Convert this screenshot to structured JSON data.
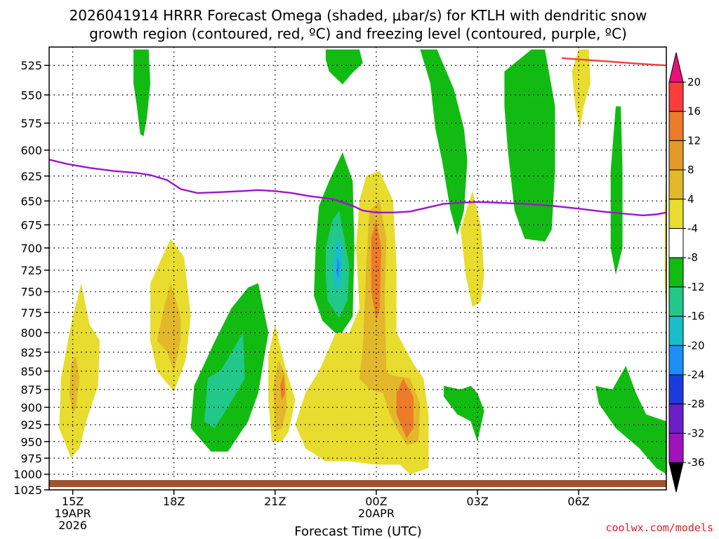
{
  "chart_data": {
    "type": "heatmap",
    "title_line1": "2026041914 HRRR Forecast Omega (shaded, μbar/s) for KTLH with dendritic snow",
    "title_line2": "growth region (contoured, red, ºC) and freezing level (contoured, purple, ºC)",
    "xlabel": "Forecast Time (UTC)",
    "credit": "coolwx.com/models",
    "x_range_hours": [
      14.3,
      32.6
    ],
    "y_range_hpa": [
      1025,
      510
    ],
    "y_ticks": [
      525,
      550,
      575,
      600,
      625,
      650,
      675,
      700,
      725,
      750,
      775,
      800,
      825,
      850,
      875,
      900,
      925,
      950,
      975,
      1000,
      1025
    ],
    "x_ticks": [
      {
        "hour": 15,
        "lines": [
          "15Z",
          "19APR",
          "2026"
        ]
      },
      {
        "hour": 18,
        "lines": [
          "18Z"
        ]
      },
      {
        "hour": 21,
        "lines": [
          "21Z"
        ]
      },
      {
        "hour": 24,
        "lines": [
          "00Z",
          "20APR"
        ]
      },
      {
        "hour": 27,
        "lines": [
          "03Z"
        ]
      },
      {
        "hour": 30,
        "lines": [
          "06Z"
        ]
      }
    ],
    "colorbar": {
      "labels": [
        "20",
        "16",
        "12",
        "8",
        "4",
        "-4",
        "-8",
        "-12",
        "-16",
        "-20",
        "-24",
        "-28",
        "-32",
        "-36"
      ],
      "colors": [
        "#ff3b3b",
        "#ec7b2a",
        "#e29a2a",
        "#e2b82a",
        "#e8dc2e",
        "#ffffff",
        "#12bb12",
        "#22c78a",
        "#18bec8",
        "#1c8ef5",
        "#1c3bdf",
        "#6a1fc9",
        "#a012bd",
        "#a8a8a8"
      ],
      "top_color": "#e8127a",
      "bottom_color": "#000000"
    },
    "freezing_level": {
      "hours": [
        14.3,
        14.8,
        15.5,
        16.2,
        16.9,
        17.3,
        17.8,
        18.2,
        18.7,
        19.4,
        20.0,
        20.5,
        21.0,
        21.5,
        22.0,
        22.7,
        23.3,
        23.6,
        24.0,
        24.5,
        25.0,
        25.5,
        26.0,
        26.5,
        27.0,
        27.7,
        28.4,
        29.2,
        30.0,
        30.7,
        31.3,
        31.9,
        32.3,
        32.6
      ],
      "hpa": [
        609,
        613,
        617,
        620,
        622,
        624,
        629,
        638,
        642,
        641,
        640,
        639,
        640,
        642,
        645,
        648,
        655,
        660,
        662,
        662,
        661,
        657,
        653,
        652,
        651,
        652,
        653,
        655,
        658,
        661,
        663,
        665,
        664,
        662
      ]
    },
    "dgz_top": {
      "hours": [
        29.5,
        30.0,
        30.5,
        31.0,
        31.5,
        32.0,
        32.6
      ],
      "hpa": [
        519,
        520,
        521,
        522,
        523,
        524,
        525
      ]
    },
    "omega_regions": [
      {
        "value": -8,
        "level": "-4 to -8",
        "points": [
          [
            16.8,
            512
          ],
          [
            17.25,
            512
          ],
          [
            17.3,
            540
          ],
          [
            17.2,
            570
          ],
          [
            17.1,
            587
          ],
          [
            17.0,
            585
          ],
          [
            16.9,
            560
          ],
          [
            16.8,
            540
          ]
        ]
      },
      {
        "value": -8,
        "level": "-4 to -8",
        "points": [
          [
            22.5,
            512
          ],
          [
            23.5,
            512
          ],
          [
            23.6,
            523
          ],
          [
            23.3,
            531
          ],
          [
            23.0,
            541
          ],
          [
            22.6,
            530
          ],
          [
            22.5,
            520
          ]
        ]
      },
      {
        "value": -8,
        "level": "-4 to -8",
        "points": [
          [
            25.3,
            512
          ],
          [
            25.8,
            512
          ],
          [
            26.3,
            545
          ],
          [
            26.6,
            580
          ],
          [
            26.7,
            610
          ],
          [
            26.6,
            660
          ],
          [
            26.4,
            686
          ],
          [
            26.2,
            660
          ],
          [
            25.95,
            610
          ],
          [
            25.75,
            580
          ],
          [
            25.6,
            540
          ]
        ]
      },
      {
        "value": -8,
        "level": "-4 to -8",
        "points": [
          [
            27.8,
            530
          ],
          [
            28.6,
            512
          ],
          [
            29.0,
            512
          ],
          [
            29.3,
            560
          ],
          [
            29.3,
            620
          ],
          [
            29.2,
            680
          ],
          [
            29.0,
            693
          ],
          [
            28.4,
            690
          ],
          [
            28.1,
            660
          ],
          [
            27.9,
            600
          ],
          [
            27.8,
            560
          ]
        ]
      },
      {
        "value": -8,
        "level": "-4 to -8",
        "points": [
          [
            31.1,
            560
          ],
          [
            31.25,
            560
          ],
          [
            31.3,
            620
          ],
          [
            31.3,
            700
          ],
          [
            31.1,
            730
          ],
          [
            30.95,
            700
          ],
          [
            30.95,
            620
          ]
        ]
      },
      {
        "value": -8,
        "level": "-4 to -8",
        "points": [
          [
            22.3,
            655
          ],
          [
            22.6,
            630
          ],
          [
            23.0,
            602
          ],
          [
            23.3,
            630
          ],
          [
            23.35,
            700
          ],
          [
            23.3,
            780
          ],
          [
            22.9,
            805
          ],
          [
            22.4,
            785
          ],
          [
            22.15,
            755
          ],
          [
            22.2,
            700
          ]
        ]
      },
      {
        "value": -8,
        "level": "-4 to -8",
        "points": [
          [
            19.2,
            812
          ],
          [
            19.7,
            770
          ],
          [
            20.2,
            745
          ],
          [
            20.5,
            740
          ],
          [
            20.8,
            800
          ],
          [
            20.5,
            880
          ],
          [
            20.2,
            920
          ],
          [
            19.6,
            965
          ],
          [
            19.1,
            965
          ],
          [
            18.5,
            930
          ],
          [
            18.6,
            870
          ]
        ]
      },
      {
        "value": -8,
        "level": "-4 to -8",
        "points": [
          [
            26.0,
            870
          ],
          [
            26.5,
            875
          ],
          [
            26.8,
            870
          ],
          [
            27.0,
            880
          ],
          [
            27.2,
            905
          ],
          [
            27.0,
            950
          ],
          [
            26.8,
            920
          ],
          [
            26.4,
            910
          ],
          [
            26.0,
            885
          ]
        ]
      },
      {
        "value": -8,
        "level": "-4 to -8",
        "points": [
          [
            30.5,
            870
          ],
          [
            31.0,
            875
          ],
          [
            31.4,
            843
          ],
          [
            31.7,
            880
          ],
          [
            32.0,
            910
          ],
          [
            32.3,
            915
          ],
          [
            32.6,
            920
          ],
          [
            32.6,
            1000
          ],
          [
            32.3,
            990
          ],
          [
            31.8,
            960
          ],
          [
            31.1,
            930
          ],
          [
            30.6,
            895
          ]
        ]
      },
      {
        "value": -12,
        "level": "-8 to -12",
        "points": [
          [
            22.5,
            700
          ],
          [
            22.7,
            670
          ],
          [
            22.9,
            660
          ],
          [
            23.2,
            720
          ],
          [
            23.15,
            760
          ],
          [
            22.9,
            782
          ],
          [
            22.55,
            760
          ],
          [
            22.5,
            730
          ]
        ]
      },
      {
        "value": -12,
        "level": "-8 to -12",
        "points": [
          [
            19.0,
            860
          ],
          [
            19.4,
            848
          ],
          [
            20.05,
            800
          ],
          [
            20.1,
            860
          ],
          [
            19.6,
            900
          ],
          [
            19.2,
            930
          ],
          [
            18.9,
            920
          ]
        ]
      },
      {
        "value": -16,
        "level": "-12 to -16",
        "points": [
          [
            22.8,
            690
          ],
          [
            23.0,
            700
          ],
          [
            22.95,
            740
          ],
          [
            22.8,
            752
          ],
          [
            22.7,
            720
          ]
        ]
      },
      {
        "value": -20,
        "level": "-16 to -20",
        "points": [
          [
            22.85,
            710
          ],
          [
            22.92,
            718
          ],
          [
            22.88,
            735
          ],
          [
            22.82,
            728
          ]
        ]
      },
      {
        "value": 4,
        "level": "4 to 8",
        "points": [
          [
            14.95,
            975
          ],
          [
            14.6,
            930
          ],
          [
            14.65,
            860
          ],
          [
            14.95,
            790
          ],
          [
            15.25,
            740
          ],
          [
            15.5,
            790
          ],
          [
            15.8,
            810
          ],
          [
            15.75,
            870
          ],
          [
            15.4,
            920
          ],
          [
            15.2,
            960
          ]
        ]
      },
      {
        "value": 4,
        "level": "4 to 8",
        "points": [
          [
            17.3,
            810
          ],
          [
            17.3,
            740
          ],
          [
            17.9,
            690
          ],
          [
            18.3,
            710
          ],
          [
            18.5,
            780
          ],
          [
            18.35,
            835
          ],
          [
            18.0,
            878
          ],
          [
            17.5,
            850
          ]
        ]
      },
      {
        "value": 4,
        "level": "4 to 8",
        "points": [
          [
            20.8,
            890
          ],
          [
            20.8,
            830
          ],
          [
            21.0,
            790
          ],
          [
            21.3,
            845
          ],
          [
            21.6,
            890
          ],
          [
            21.4,
            935
          ],
          [
            21.2,
            950
          ],
          [
            20.9,
            950
          ]
        ]
      },
      {
        "value": 4,
        "level": "4 to 8",
        "points": [
          [
            21.6,
            925
          ],
          [
            21.9,
            880
          ],
          [
            22.3,
            850
          ],
          [
            22.8,
            800
          ],
          [
            23.2,
            800
          ],
          [
            23.5,
            770
          ],
          [
            23.4,
            700
          ],
          [
            23.5,
            650
          ],
          [
            23.7,
            625
          ],
          [
            24.1,
            620
          ],
          [
            24.5,
            650
          ],
          [
            24.6,
            720
          ],
          [
            24.6,
            800
          ],
          [
            25.1,
            840
          ],
          [
            25.4,
            860
          ],
          [
            25.55,
            910
          ],
          [
            25.55,
            990
          ],
          [
            25.0,
            1000
          ],
          [
            24.7,
            985
          ],
          [
            24.0,
            985
          ],
          [
            23.2,
            980
          ],
          [
            22.5,
            980
          ],
          [
            21.9,
            960
          ]
        ]
      },
      {
        "value": 4,
        "level": "4 to 8",
        "points": [
          [
            26.5,
            680
          ],
          [
            26.85,
            640
          ],
          [
            27.1,
            675
          ],
          [
            27.2,
            730
          ],
          [
            27.1,
            762
          ],
          [
            26.85,
            768
          ],
          [
            26.65,
            730
          ]
        ]
      },
      {
        "value": 4,
        "level": "4 to 8",
        "points": [
          [
            29.8,
            530
          ],
          [
            30.0,
            512
          ],
          [
            30.3,
            512
          ],
          [
            30.35,
            540
          ],
          [
            30.15,
            560
          ],
          [
            30.05,
            580
          ],
          [
            29.9,
            560
          ]
        ]
      },
      {
        "value": 4,
        "level": "4 to 8",
        "points": [
          [
            32.55,
            660
          ],
          [
            32.6,
            625
          ],
          [
            32.6,
            780
          ],
          [
            32.55,
            740
          ]
        ]
      },
      {
        "value": 8,
        "level": "8 to 12",
        "points": [
          [
            14.9,
            880
          ],
          [
            14.95,
            840
          ],
          [
            15.1,
            830
          ],
          [
            15.2,
            860
          ],
          [
            15.1,
            900
          ],
          [
            15.0,
            910
          ]
        ]
      },
      {
        "value": 8,
        "level": "8 to 12",
        "points": [
          [
            17.5,
            810
          ],
          [
            17.7,
            770
          ],
          [
            17.9,
            740
          ],
          [
            18.2,
            780
          ],
          [
            18.2,
            810
          ],
          [
            18.0,
            850
          ],
          [
            17.8,
            825
          ]
        ]
      },
      {
        "value": 8,
        "level": "8 to 12",
        "points": [
          [
            20.95,
            870
          ],
          [
            21.1,
            835
          ],
          [
            21.3,
            855
          ],
          [
            21.35,
            900
          ],
          [
            21.2,
            930
          ],
          [
            21.0,
            935
          ]
        ]
      },
      {
        "value": 8,
        "level": "8 to 12",
        "points": [
          [
            23.5,
            860
          ],
          [
            23.6,
            820
          ],
          [
            23.7,
            720
          ],
          [
            23.8,
            660
          ],
          [
            24.1,
            650
          ],
          [
            24.3,
            690
          ],
          [
            24.25,
            760
          ],
          [
            24.3,
            850
          ],
          [
            24.4,
            855
          ],
          [
            25.0,
            860
          ],
          [
            25.3,
            895
          ],
          [
            25.25,
            950
          ],
          [
            24.9,
            955
          ],
          [
            24.6,
            930
          ],
          [
            24.4,
            910
          ],
          [
            24.2,
            880
          ],
          [
            23.8,
            875
          ]
        ]
      },
      {
        "value": 12,
        "level": "12 to 16",
        "points": [
          [
            23.85,
            690
          ],
          [
            24.0,
            670
          ],
          [
            24.15,
            700
          ],
          [
            24.1,
            770
          ],
          [
            24.0,
            785
          ],
          [
            23.85,
            750
          ]
        ]
      },
      {
        "value": 12,
        "level": "12 to 16",
        "points": [
          [
            24.6,
            880
          ],
          [
            24.8,
            860
          ],
          [
            25.1,
            885
          ],
          [
            25.1,
            930
          ],
          [
            24.9,
            945
          ],
          [
            24.6,
            910
          ]
        ]
      },
      {
        "value": 12,
        "level": "12 to 16",
        "points": [
          [
            21.15,
            870
          ],
          [
            21.25,
            855
          ],
          [
            21.3,
            880
          ],
          [
            21.2,
            890
          ]
        ]
      }
    ]
  }
}
